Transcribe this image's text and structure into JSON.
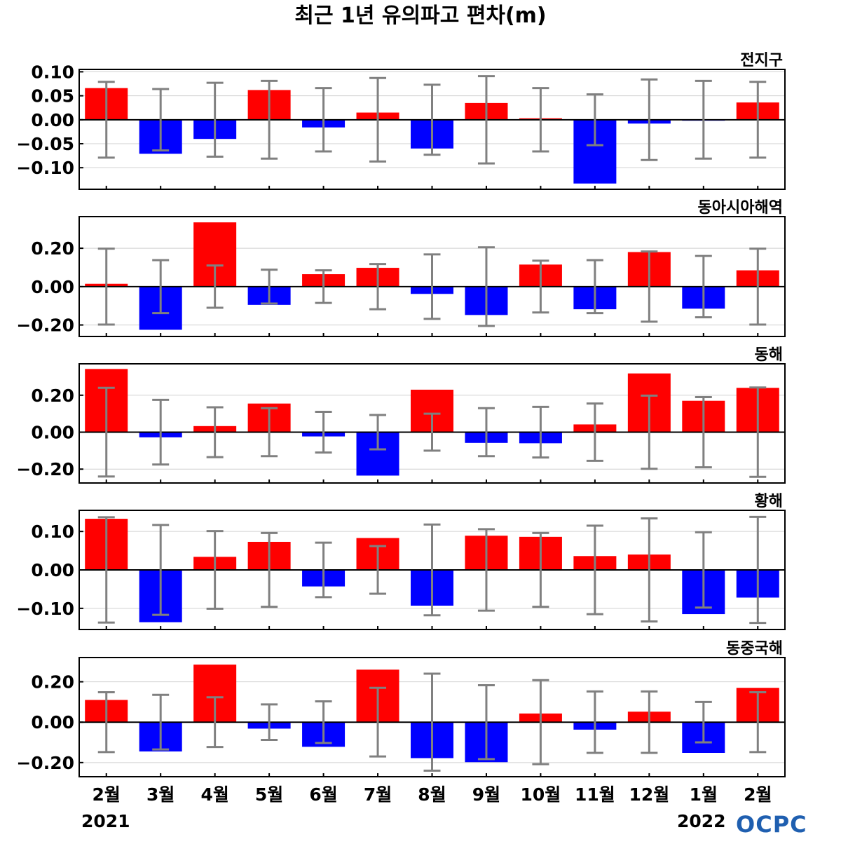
{
  "title": "최근 1년 유의파고 편차(m)",
  "logo_text": "OCPC",
  "colors": {
    "positive": "#ff0000",
    "negative": "#0000ff",
    "error_bar": "#808080",
    "grid": "#d0d0d0",
    "zero_line": "#000000",
    "logo": "#1f5fb0"
  },
  "chart_data": [
    {
      "type": "bar",
      "region": "전지구",
      "categories": [
        "2월",
        "3월",
        "4월",
        "5월",
        "6월",
        "7월",
        "8월",
        "9월",
        "10월",
        "11월",
        "12월",
        "1월",
        "2월"
      ],
      "values": [
        0.066,
        -0.071,
        -0.04,
        0.062,
        -0.016,
        0.015,
        -0.06,
        0.035,
        0.003,
        -0.133,
        -0.008,
        -0.002,
        0.036
      ],
      "error": [
        0.079,
        0.064,
        0.077,
        0.081,
        0.066,
        0.087,
        0.073,
        0.091,
        0.066,
        0.053,
        0.084,
        0.081,
        0.079
      ],
      "yticks": [
        0.1,
        0.05,
        0.0,
        -0.05,
        -0.1
      ],
      "ytick_labels": [
        "0.10",
        "0.05",
        "0.00",
        "−0.05",
        "−0.10"
      ],
      "ylim": [
        -0.145,
        0.105
      ]
    },
    {
      "type": "bar",
      "region": "동아시아해역",
      "categories": [
        "2월",
        "3월",
        "4월",
        "5월",
        "6월",
        "7월",
        "8월",
        "9월",
        "10월",
        "11월",
        "12월",
        "1월",
        "2월"
      ],
      "values": [
        0.015,
        -0.225,
        0.335,
        -0.095,
        0.065,
        0.098,
        -0.038,
        -0.148,
        0.115,
        -0.118,
        0.18,
        -0.115,
        0.085
      ],
      "error": [
        0.198,
        0.138,
        0.11,
        0.088,
        0.085,
        0.118,
        0.168,
        0.205,
        0.135,
        0.138,
        0.183,
        0.16,
        0.198
      ],
      "yticks": [
        0.2,
        0.0,
        -0.2
      ],
      "ytick_labels": [
        "0.20",
        "0.00",
        "−0.20"
      ],
      "ylim": [
        -0.26,
        0.365
      ]
    },
    {
      "type": "bar",
      "region": "동해",
      "categories": [
        "2월",
        "3월",
        "4월",
        "5월",
        "6월",
        "7월",
        "8월",
        "9월",
        "10월",
        "11월",
        "12월",
        "1월",
        "2월"
      ],
      "values": [
        0.342,
        -0.028,
        0.033,
        0.155,
        -0.023,
        -0.235,
        0.23,
        -0.058,
        -0.06,
        0.042,
        0.318,
        0.17,
        0.24
      ],
      "error": [
        0.24,
        0.175,
        0.135,
        0.13,
        0.11,
        0.093,
        0.1,
        0.13,
        0.137,
        0.155,
        0.198,
        0.19,
        0.242
      ],
      "yticks": [
        0.2,
        0.0,
        -0.2
      ],
      "ytick_labels": [
        "0.20",
        "0.00",
        "−0.20"
      ],
      "ylim": [
        -0.275,
        0.37
      ]
    },
    {
      "type": "bar",
      "region": "황해",
      "categories": [
        "2월",
        "3월",
        "4월",
        "5월",
        "6월",
        "7월",
        "8월",
        "9월",
        "10월",
        "11월",
        "12월",
        "1월",
        "2월"
      ],
      "values": [
        0.133,
        -0.136,
        0.034,
        0.073,
        -0.043,
        0.083,
        -0.093,
        0.089,
        0.086,
        0.036,
        0.04,
        -0.115,
        -0.072
      ],
      "error": [
        0.137,
        0.117,
        0.101,
        0.096,
        0.071,
        0.062,
        0.118,
        0.106,
        0.096,
        0.115,
        0.134,
        0.098,
        0.138
      ],
      "yticks": [
        0.1,
        0.0,
        -0.1
      ],
      "ytick_labels": [
        "0.10",
        "0.00",
        "−0.10"
      ],
      "ylim": [
        -0.155,
        0.155
      ]
    },
    {
      "type": "bar",
      "region": "동중국해",
      "categories": [
        "2월",
        "3월",
        "4월",
        "5월",
        "6월",
        "7월",
        "8월",
        "9월",
        "10월",
        "11월",
        "12월",
        "1월",
        "2월"
      ],
      "values": [
        0.11,
        -0.145,
        0.285,
        -0.032,
        -0.122,
        0.26,
        -0.178,
        -0.198,
        0.043,
        -0.037,
        0.052,
        -0.152,
        0.17
      ],
      "error": [
        0.148,
        0.135,
        0.123,
        0.088,
        0.103,
        0.17,
        0.24,
        0.183,
        0.208,
        0.152,
        0.152,
        0.1,
        0.148
      ],
      "yticks": [
        0.2,
        0.0,
        -0.2
      ],
      "ytick_labels": [
        "0.20",
        "0.00",
        "−0.20"
      ],
      "ylim": [
        -0.27,
        0.32
      ]
    }
  ],
  "x_axis": {
    "month_labels": [
      "2월",
      "3월",
      "4월",
      "5월",
      "6월",
      "7월",
      "8월",
      "9월",
      "10월",
      "11월",
      "12월",
      "1월",
      "2월"
    ],
    "year_start": "2021",
    "year_end": "2022"
  }
}
